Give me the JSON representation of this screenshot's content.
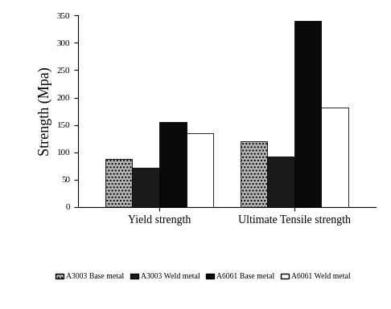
{
  "chart_data": {
    "type": "bar",
    "y_label": "Strength (Mpa)",
    "categories": [
      "Yield strength",
      "Ultimate Tensile strength"
    ],
    "series": [
      {
        "name": "A3003 Base metal",
        "color": "#b4b4b4",
        "values": [
          88,
          120
        ]
      },
      {
        "name": "A3003 Weld metal",
        "color": "#1a1a1a",
        "values": [
          72,
          92
        ]
      },
      {
        "name": "A6061 Base metal",
        "color": "#0a0a0a",
        "values": [
          155,
          340
        ]
      },
      {
        "name": "A6061 Weld metal",
        "color": "#ffffff",
        "values": [
          135,
          182
        ]
      }
    ],
    "ylim": [
      0,
      350
    ],
    "yticks": [
      0,
      50,
      100,
      150,
      200,
      250,
      300,
      350
    ],
    "grid": false,
    "legend": "lower center"
  }
}
